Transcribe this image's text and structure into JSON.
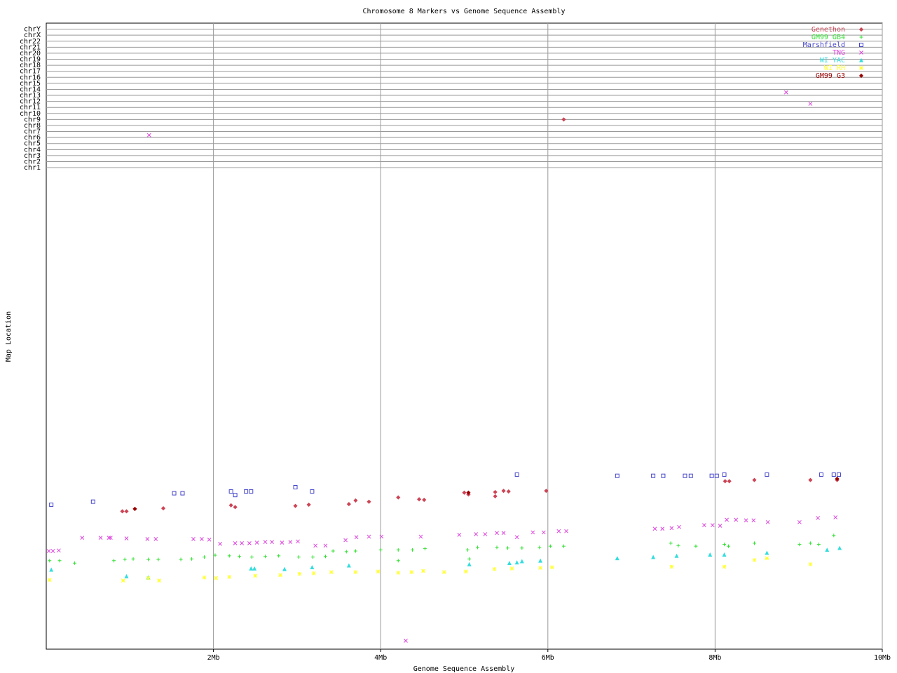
{
  "chart_data": {
    "type": "scatter",
    "title": "Chromosome 8 Markers vs Genome Sequence Assembly",
    "x_label": "Genome Sequence Assembly",
    "y_label": "Map Location",
    "xlim": [
      0,
      10
    ],
    "xticks": [
      {
        "value": 2,
        "label": "2Mb"
      },
      {
        "value": 4,
        "label": "4Mb"
      },
      {
        "value": 6,
        "label": "6Mb"
      },
      {
        "value": 8,
        "label": "8Mb"
      },
      {
        "value": 10,
        "label": "10Mb"
      }
    ],
    "ylim": [
      0,
      104
    ],
    "yticks": [
      {
        "value": 80,
        "label": "chr1"
      },
      {
        "value": 81,
        "label": "chr2"
      },
      {
        "value": 82,
        "label": "chr3"
      },
      {
        "value": 83,
        "label": "chr4"
      },
      {
        "value": 84,
        "label": "chr5"
      },
      {
        "value": 85,
        "label": "chr6"
      },
      {
        "value": 86,
        "label": "chr7"
      },
      {
        "value": 87,
        "label": "chr8"
      },
      {
        "value": 88,
        "label": "chr9"
      },
      {
        "value": 89,
        "label": "chr10"
      },
      {
        "value": 90,
        "label": "chr11"
      },
      {
        "value": 91,
        "label": "chr12"
      },
      {
        "value": 92,
        "label": "chr13"
      },
      {
        "value": 93,
        "label": "chr14"
      },
      {
        "value": 94,
        "label": "chr15"
      },
      {
        "value": 95,
        "label": "chr16"
      },
      {
        "value": 96,
        "label": "chr17"
      },
      {
        "value": 97,
        "label": "chr18"
      },
      {
        "value": 98,
        "label": "chr19"
      },
      {
        "value": 99,
        "label": "chr20"
      },
      {
        "value": 100,
        "label": "chr21"
      },
      {
        "value": 101,
        "label": "chr22"
      },
      {
        "value": 102,
        "label": "chrX"
      },
      {
        "value": 103,
        "label": "chrY"
      }
    ],
    "grid": true,
    "legend": "top-right",
    "series": [
      {
        "name": "Genethon",
        "color": "#cc4455",
        "marker": "diamond",
        "x": [
          0.91,
          0.96,
          1.06,
          1.4,
          2.21,
          2.26,
          2.98,
          3.14,
          3.62,
          3.7,
          3.86,
          4.21,
          4.46,
          4.52,
          5.0,
          5.05,
          5.37,
          5.37,
          5.47,
          5.53,
          5.98,
          6.19,
          8.12,
          8.17,
          8.47,
          9.14,
          9.46
        ],
        "y": [
          22.9,
          22.9,
          23.3,
          23.4,
          23.9,
          23.6,
          23.8,
          24.0,
          24.1,
          24.7,
          24.5,
          25.2,
          24.9,
          24.8,
          26.0,
          25.7,
          25.4,
          26.1,
          26.3,
          26.2,
          26.3,
          88,
          27.9,
          27.9,
          28.1,
          28.1,
          28.1
        ]
      },
      {
        "name": "GM99 GB4",
        "color": "#33e033",
        "marker": "plus",
        "x": [
          0.04,
          0.16,
          0.34,
          0.81,
          0.94,
          1.04,
          1.22,
          1.34,
          1.61,
          1.74,
          1.89,
          2.02,
          2.19,
          2.31,
          2.46,
          2.62,
          2.78,
          3.02,
          3.19,
          3.34,
          3.43,
          3.59,
          3.7,
          4.0,
          4.21,
          4.21,
          4.38,
          4.53,
          5.04,
          5.06,
          5.16,
          5.39,
          5.52,
          5.69,
          5.9,
          6.03,
          6.19,
          7.47,
          7.56,
          7.77,
          8.11,
          8.16,
          8.47,
          9.01,
          9.14,
          9.24,
          9.42
        ],
        "y": [
          14.7,
          14.7,
          14.3,
          14.7,
          14.9,
          15.0,
          14.9,
          14.9,
          14.9,
          15.0,
          15.3,
          15.6,
          15.5,
          15.4,
          15.3,
          15.4,
          15.5,
          15.3,
          15.3,
          15.4,
          16.3,
          16.2,
          16.3,
          16.5,
          16.5,
          14.7,
          16.5,
          16.7,
          16.5,
          15.0,
          16.9,
          16.9,
          16.8,
          16.8,
          16.9,
          17.1,
          17.1,
          17.6,
          17.2,
          17.1,
          17.4,
          17.1,
          17.6,
          17.4,
          17.6,
          17.4,
          18.9
        ]
      },
      {
        "name": "Marshfield",
        "color": "#4444cc",
        "marker": "square",
        "x": [
          0.06,
          0.56,
          1.53,
          1.63,
          2.21,
          2.26,
          2.39,
          2.45,
          2.98,
          3.18,
          5.63,
          6.83,
          7.26,
          7.38,
          7.64,
          7.71,
          7.96,
          8.02,
          8.11,
          8.62,
          9.27,
          9.42,
          9.48
        ],
        "y": [
          24.0,
          24.5,
          25.9,
          25.9,
          26.2,
          25.6,
          26.2,
          26.2,
          26.9,
          26.2,
          29.0,
          28.8,
          28.8,
          28.8,
          28.8,
          28.8,
          28.8,
          28.8,
          29.0,
          29.0,
          29.0,
          29.0,
          29.0
        ]
      },
      {
        "name": "TNG",
        "color": "#dd44dd",
        "marker": "x",
        "x": [
          0.03,
          0.08,
          0.15,
          0.43,
          0.65,
          0.75,
          0.77,
          0.96,
          1.21,
          1.31,
          1.76,
          1.86,
          1.95,
          2.08,
          2.26,
          2.34,
          2.43,
          2.52,
          2.62,
          2.7,
          2.82,
          2.92,
          3.01,
          3.22,
          3.34,
          3.58,
          3.71,
          3.86,
          4.01,
          4.48,
          4.94,
          5.14,
          5.25,
          5.39,
          5.47,
          5.63,
          5.82,
          5.95,
          6.13,
          6.22,
          7.28,
          7.37,
          7.48,
          7.57,
          7.87,
          7.97,
          8.06,
          8.14,
          8.25,
          8.37,
          8.46,
          8.63,
          9.01,
          9.23,
          9.44,
          1.23,
          8.85,
          9.14,
          4.3
        ],
        "y": [
          16.3,
          16.3,
          16.4,
          18.5,
          18.5,
          18.5,
          18.5,
          18.4,
          18.3,
          18.3,
          18.3,
          18.3,
          18.2,
          17.5,
          17.6,
          17.6,
          17.6,
          17.7,
          17.8,
          17.8,
          17.7,
          17.8,
          17.9,
          17.2,
          17.2,
          18.1,
          18.6,
          18.7,
          18.7,
          18.7,
          19.0,
          19.1,
          19.1,
          19.3,
          19.3,
          18.6,
          19.4,
          19.4,
          19.6,
          19.6,
          20.0,
          20.0,
          20.1,
          20.3,
          20.6,
          20.6,
          20.5,
          21.5,
          21.5,
          21.4,
          21.4,
          21.1,
          21.1,
          21.8,
          21.9,
          85.4,
          92.5,
          90.6,
          1.4
        ]
      },
      {
        "name": "WI YAC",
        "color": "#33dddd",
        "marker": "triangle",
        "x": [
          0.06,
          0.96,
          1.22,
          2.45,
          2.49,
          2.85,
          3.18,
          3.62,
          5.06,
          5.54,
          5.63,
          5.69,
          5.91,
          6.83,
          7.26,
          7.54,
          7.94,
          8.11,
          8.62,
          9.34,
          9.49
        ],
        "y": [
          13.2,
          12.1,
          11.9,
          13.4,
          13.4,
          13.3,
          13.6,
          13.9,
          14.1,
          14.3,
          14.4,
          14.6,
          14.7,
          15.1,
          15.3,
          15.5,
          15.7,
          15.7,
          16.0,
          16.5,
          16.8
        ]
      },
      {
        "name": "WI RH",
        "color": "#ffff33",
        "marker": "star",
        "x": [
          0.04,
          0.92,
          1.22,
          1.35,
          1.89,
          2.03,
          2.19,
          2.5,
          2.8,
          3.03,
          3.2,
          3.41,
          3.7,
          3.97,
          4.21,
          4.37,
          4.51,
          4.76,
          5.02,
          5.36,
          5.57,
          5.91,
          6.05,
          7.48,
          8.11,
          8.47,
          8.62,
          9.14
        ],
        "y": [
          11.5,
          11.4,
          11.8,
          11.4,
          11.9,
          11.8,
          12.0,
          12.2,
          12.3,
          12.5,
          12.6,
          12.8,
          12.8,
          12.9,
          12.7,
          12.8,
          13.0,
          12.8,
          12.9,
          13.3,
          13.4,
          13.5,
          13.6,
          13.7,
          13.7,
          14.8,
          15.1,
          14.1
        ]
      },
      {
        "name": "GM99 G3",
        "color": "#990000",
        "marker": "diamond",
        "x": [
          1.06,
          5.05,
          9.46
        ],
        "y": [
          23.3,
          26.0,
          28.3
        ]
      }
    ]
  }
}
